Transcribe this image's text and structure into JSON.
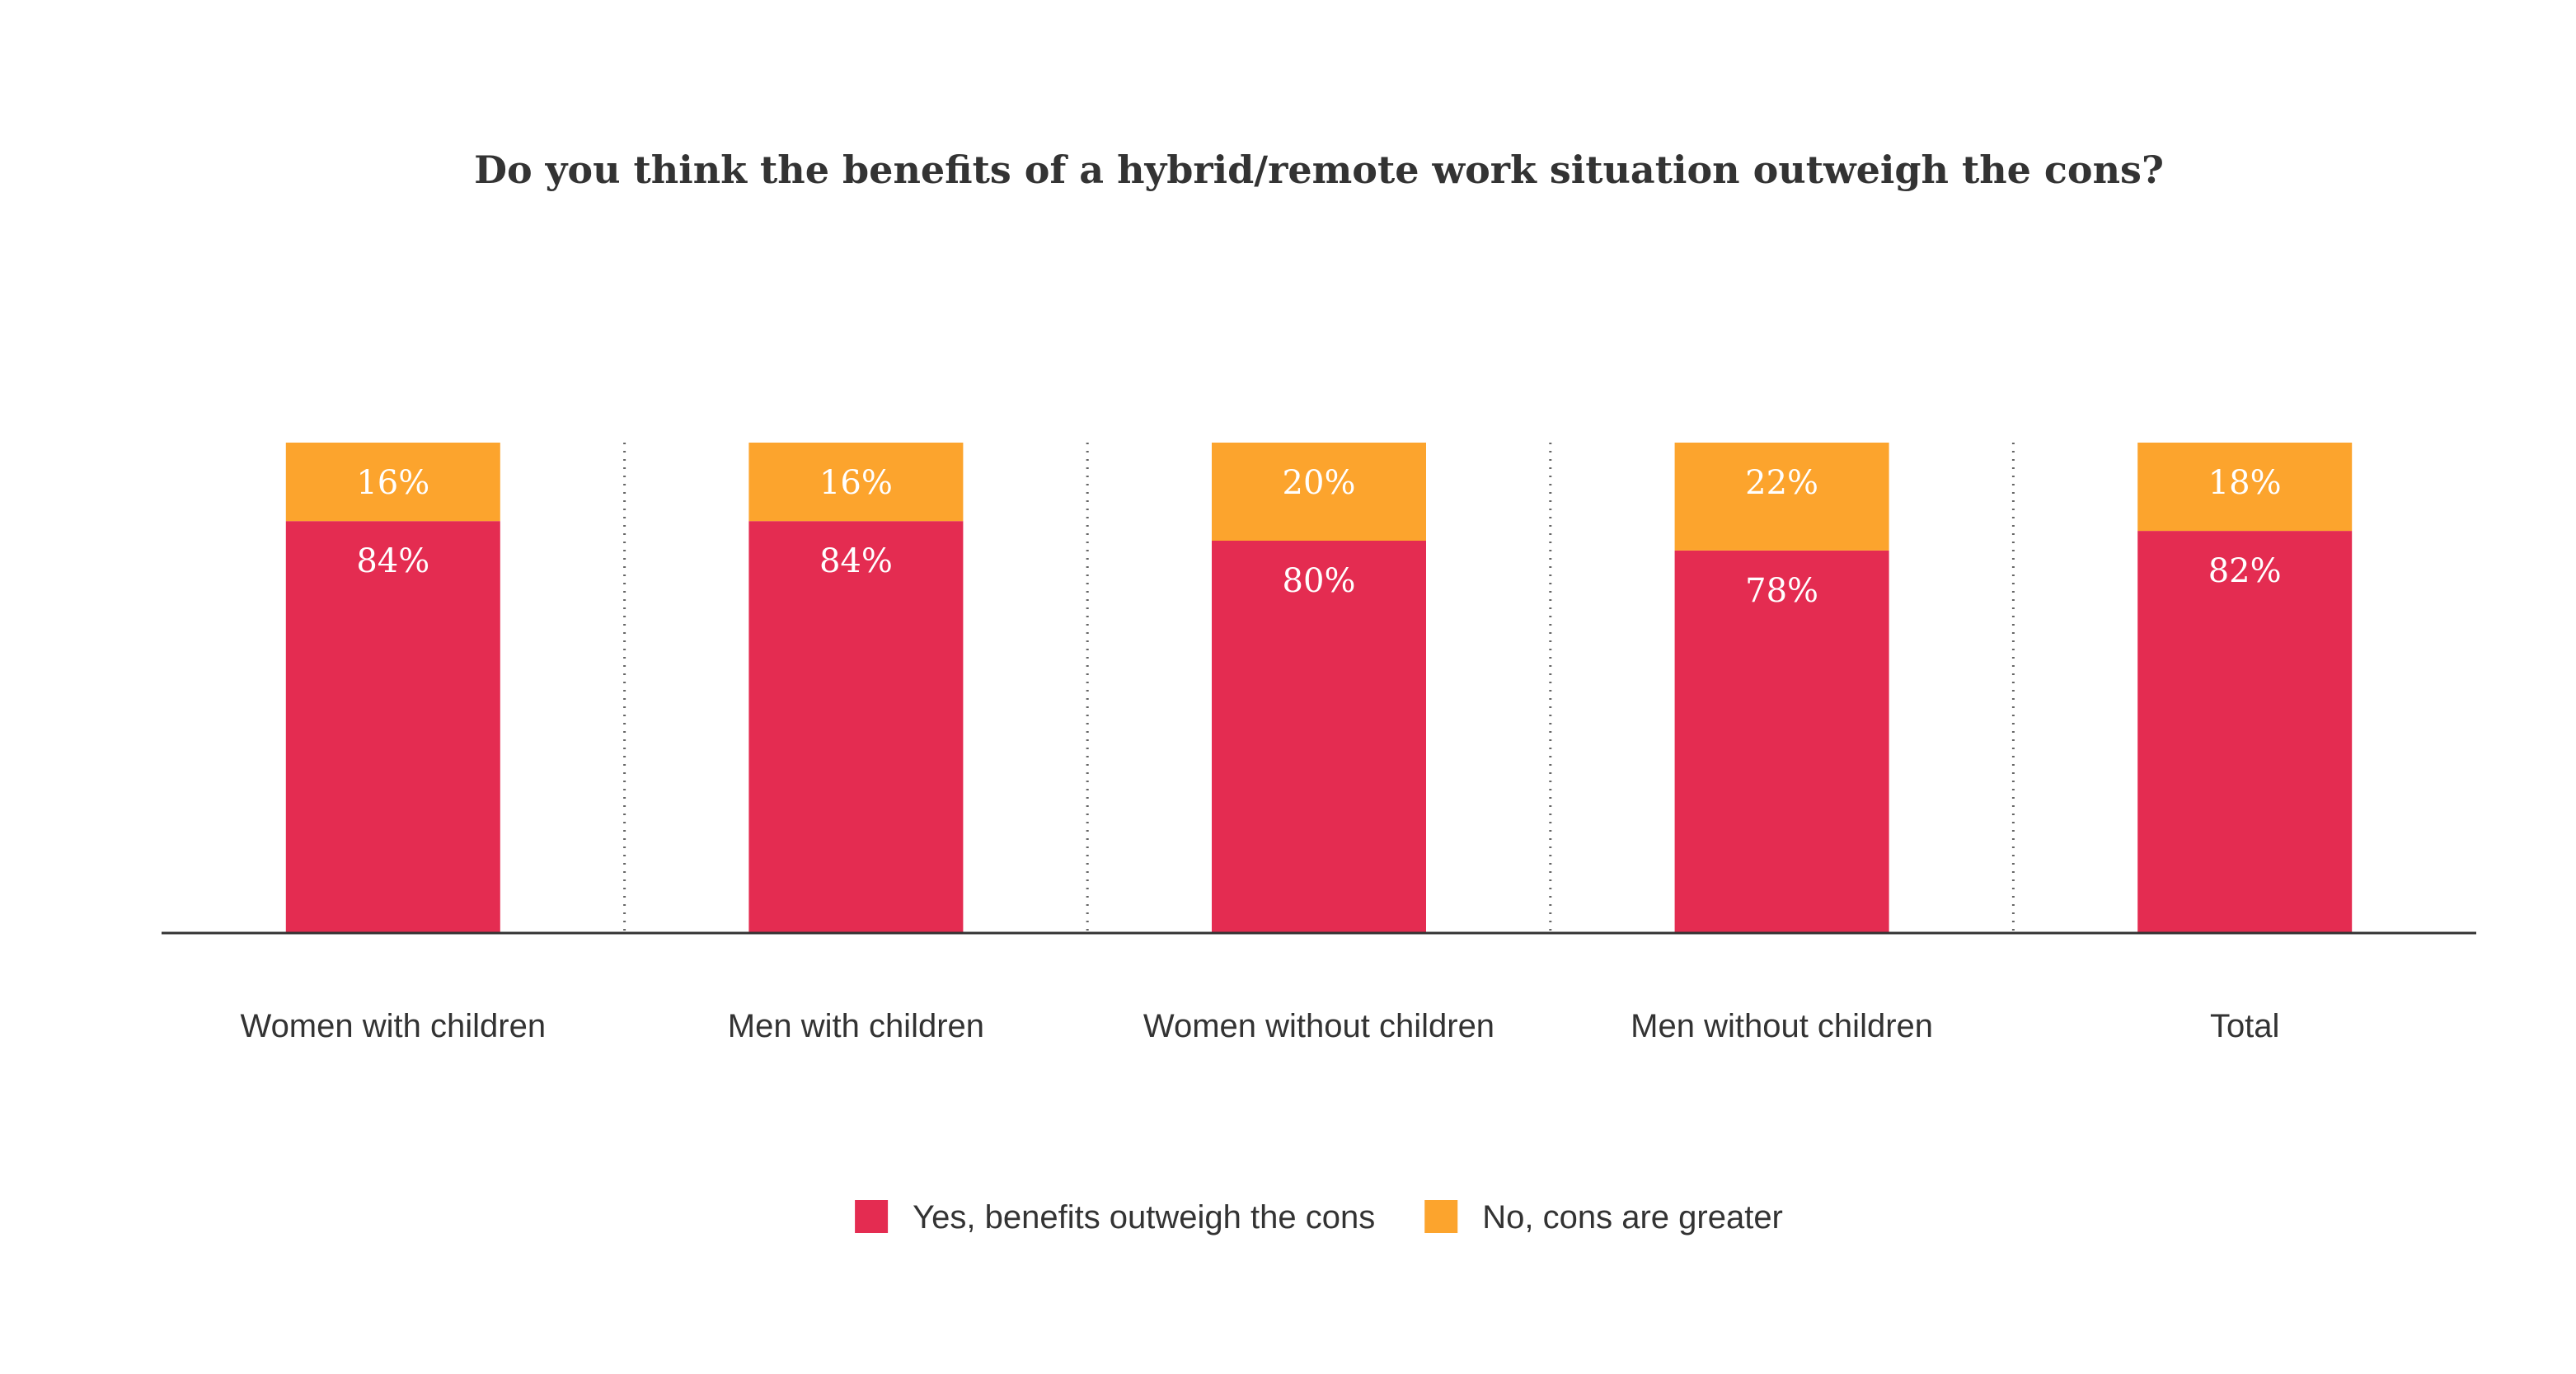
{
  "chart_data": {
    "type": "bar",
    "stacked": true,
    "title": "Do you think the benefits of a hybrid/remote work situation outweigh the cons?",
    "categories": [
      "Women with children",
      "Men with children",
      "Women without children",
      "Men without children",
      "Total"
    ],
    "series": [
      {
        "name": "Yes, benefits outweigh the cons",
        "color": "#e42c51",
        "values": [
          84,
          84,
          80,
          78,
          82
        ],
        "labels": [
          "84%",
          "84%",
          "80%",
          "78%",
          "82%"
        ]
      },
      {
        "name": "No, cons are greater",
        "color": "#fca42d",
        "values": [
          16,
          16,
          20,
          22,
          18
        ],
        "labels": [
          "16%",
          "16%",
          "20%",
          "22%",
          "18%"
        ]
      }
    ],
    "ylim": [
      0,
      100
    ],
    "grid": false,
    "category_separators": true,
    "legend": "bottom-center"
  }
}
